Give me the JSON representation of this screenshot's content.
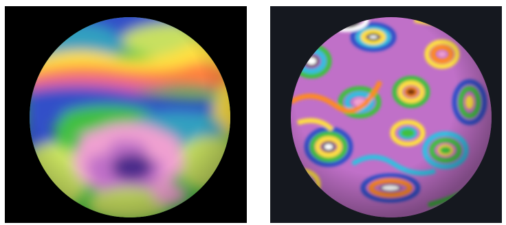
{
  "figure": {
    "panels": [
      {
        "id": "left",
        "description_name": "smooth-spherical-field",
        "background": "#000000",
        "palette": [
          "#4a2a8a",
          "#c070c8",
          "#f0a0d0",
          "#c8e060",
          "#40c040",
          "#30a0c0",
          "#3050c8",
          "#e060a0",
          "#ff8040",
          "#ffe040"
        ]
      },
      {
        "id": "right",
        "description_name": "banded-spherical-field",
        "background": "#15181f",
        "palette": [
          "#ffffff",
          "#000000",
          "#7a3010",
          "#ff8a20",
          "#ffe040",
          "#40c040",
          "#30c0e0",
          "#3050c8",
          "#c070c8",
          "#f0a0d0"
        ]
      }
    ]
  }
}
